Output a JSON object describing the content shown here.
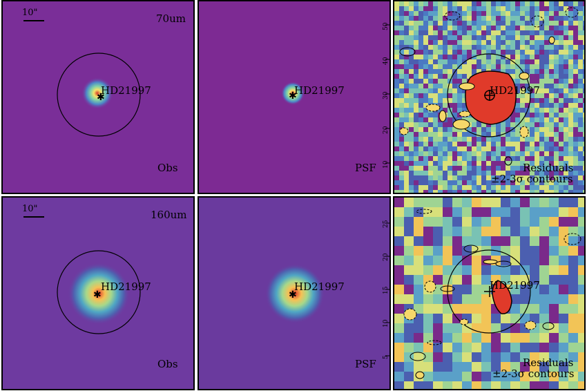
{
  "figure": {
    "rows": [
      {
        "band": "70um",
        "scale_bar": "10\"",
        "obs_label": "Obs",
        "psf_label": "PSF",
        "target": "HD21997",
        "residual_label_1": "Residuals",
        "residual_label_2": "±2-3σ contours",
        "psf_axis_ticks": [
          "50",
          "40",
          "30",
          "20",
          "10"
        ]
      },
      {
        "band": "160um",
        "scale_bar": "10\"",
        "obs_label": "Obs",
        "psf_label": "PSF",
        "target": "HD21997",
        "residual_label_1": "Residuals",
        "residual_label_2": "±2-3σ contours",
        "psf_axis_ticks": [
          "25",
          "20",
          "15",
          "10",
          "5"
        ]
      }
    ],
    "colors": {
      "background_purple": "#7a2e98",
      "psf_background": "#7d2a93",
      "peak_red": "#e03a2a",
      "residual_blue": "#4b79c2",
      "residual_green": "#8fcf84",
      "residual_purple": "#7a2a8a"
    }
  }
}
